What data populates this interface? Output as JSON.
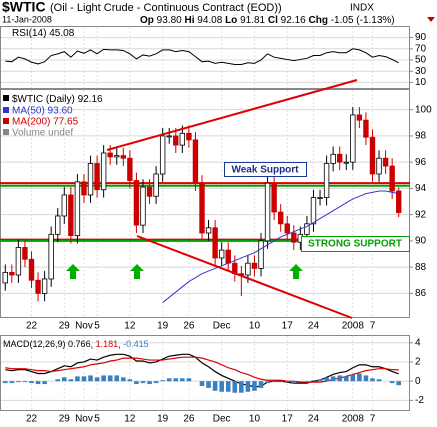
{
  "header": {
    "symbol": "$WTIC",
    "name": "(Oil - Light Crude - Continuous Contract (EOD))",
    "exchange": "INDX",
    "date": "11-Jan-2008",
    "quote": [
      {
        "label": "Op",
        "value": "93.80"
      },
      {
        "label": "Hi",
        "value": "94.08"
      },
      {
        "label": "Lo",
        "value": "91.81"
      },
      {
        "label": "Cl",
        "value": "92.16"
      },
      {
        "label": "Chg",
        "value": "-1.05 (-1.13%)"
      }
    ]
  },
  "chart_data": [
    {
      "type": "line",
      "label": "RSI(14)",
      "color": "#000000",
      "ylim": [
        0,
        100
      ],
      "yticks": [
        10,
        30,
        50,
        70,
        90
      ],
      "values": [
        48,
        47,
        55,
        52,
        46,
        43,
        47,
        58,
        61,
        65,
        55,
        66,
        62,
        68,
        61,
        69,
        68,
        68,
        67,
        61,
        52,
        59,
        57,
        61,
        68,
        68,
        65,
        67,
        65,
        56,
        47,
        48,
        44,
        46,
        44,
        42,
        42,
        45,
        44,
        50,
        61,
        55,
        53,
        51,
        49,
        51,
        53,
        58,
        58,
        63,
        65,
        63,
        63,
        70,
        68,
        63,
        55,
        58,
        56,
        51,
        45.08
      ]
    },
    {
      "type": "candlestick",
      "label": "$WTIC (Daily)",
      "up_color": "#000000",
      "down_color": "#cc0000",
      "ylim": [
        84.2,
        101.5
      ],
      "yticks": [
        86,
        88,
        90,
        92,
        94,
        96,
        98,
        100
      ],
      "categories": [
        null,
        null,
        null,
        null,
        "22",
        null,
        null,
        null,
        null,
        "29",
        null,
        null,
        "Nov",
        null,
        "5",
        null,
        null,
        null,
        null,
        "12",
        null,
        null,
        null,
        null,
        "19",
        null,
        null,
        null,
        "26",
        null,
        null,
        null,
        null,
        "Dec",
        null,
        null,
        null,
        null,
        "10",
        null,
        null,
        null,
        null,
        "17",
        null,
        null,
        null,
        "24",
        null,
        null,
        null,
        null,
        null,
        "2008",
        null,
        null,
        "7",
        null,
        null,
        null,
        null
      ],
      "open": [
        86.8,
        87.6,
        87.4,
        89.5,
        88.6,
        87.0,
        86.0,
        87.1,
        90.5,
        91.9,
        93.5,
        90.4,
        94.5,
        93.5,
        95.9,
        93.9,
        96.7,
        96.4,
        96.5,
        96.3,
        94.6,
        91.2,
        94.1,
        93.4,
        95.1,
        98.0,
        98.0,
        97.3,
        98.2,
        97.7,
        94.4,
        90.6,
        91.0,
        88.7,
        89.3,
        88.3,
        87.5,
        87.4,
        88.3,
        87.9,
        90.0,
        94.4,
        92.2,
        91.3,
        90.6,
        89.9,
        90.5,
        91.3,
        93.3,
        93.3,
        95.9,
        96.6,
        96.0,
        96.0,
        99.6,
        99.2,
        97.9,
        95.1,
        96.3,
        95.7,
        93.8
      ],
      "high": [
        88.2,
        88.2,
        90.1,
        90.1,
        89.2,
        87.6,
        87.7,
        91.1,
        92.5,
        94.1,
        94.1,
        95.1,
        95.1,
        96.5,
        96.5,
        97.3,
        97.3,
        97.1,
        97.1,
        96.9,
        95.2,
        94.7,
        94.7,
        95.7,
        98.6,
        98.6,
        98.6,
        98.8,
        98.8,
        98.3,
        95.0,
        91.6,
        91.6,
        89.9,
        89.9,
        88.9,
        88.1,
        88.9,
        88.9,
        90.6,
        95.0,
        95.0,
        92.8,
        91.9,
        91.2,
        91.1,
        91.9,
        93.9,
        93.9,
        96.5,
        97.2,
        97.2,
        96.6,
        100.2,
        100.2,
        99.8,
        98.5,
        96.9,
        96.9,
        96.3,
        94.08
      ],
      "low": [
        86.2,
        86.8,
        86.8,
        88.0,
        86.4,
        85.4,
        85.4,
        86.5,
        89.9,
        91.3,
        89.8,
        89.8,
        92.9,
        92.9,
        93.3,
        93.3,
        95.8,
        95.8,
        95.7,
        94.0,
        90.6,
        90.6,
        92.8,
        92.8,
        94.5,
        97.4,
        96.7,
        96.7,
        97.1,
        93.8,
        90.0,
        90.0,
        88.1,
        88.1,
        87.7,
        86.9,
        85.8,
        86.8,
        87.3,
        87.3,
        89.4,
        91.6,
        90.7,
        90.0,
        89.3,
        89.3,
        89.9,
        90.7,
        92.7,
        92.7,
        95.3,
        95.4,
        95.4,
        95.4,
        98.6,
        97.3,
        94.5,
        94.5,
        95.1,
        93.2,
        91.81
      ],
      "close": [
        87.6,
        87.4,
        89.5,
        88.6,
        87.0,
        86.0,
        87.1,
        90.5,
        91.9,
        93.5,
        90.4,
        94.5,
        93.5,
        95.9,
        93.9,
        96.7,
        96.4,
        96.5,
        96.3,
        94.6,
        91.2,
        94.1,
        93.4,
        95.1,
        98.0,
        98.0,
        97.3,
        98.2,
        97.7,
        94.4,
        90.6,
        91.0,
        88.7,
        89.3,
        88.3,
        87.5,
        87.4,
        88.3,
        87.9,
        90.0,
        94.4,
        92.2,
        91.3,
        90.6,
        89.9,
        90.5,
        91.3,
        93.3,
        93.3,
        95.9,
        96.6,
        96.0,
        96.0,
        99.6,
        99.2,
        97.9,
        95.1,
        96.3,
        95.7,
        93.8,
        92.16
      ],
      "series": [
        {
          "name": "MA(50) 93.60",
          "color": "#3333cc",
          "values": [
            null,
            null,
            null,
            null,
            null,
            null,
            null,
            null,
            null,
            null,
            null,
            null,
            null,
            null,
            null,
            null,
            null,
            null,
            null,
            null,
            null,
            null,
            null,
            null,
            85.3,
            85.7,
            86.1,
            86.5,
            86.9,
            87.2,
            87.5,
            87.7,
            87.9,
            88.1,
            88.3,
            88.5,
            88.7,
            88.9,
            89.1,
            89.4,
            89.7,
            90.0,
            90.3,
            90.5,
            90.7,
            90.9,
            91.1,
            91.4,
            91.7,
            92.0,
            92.3,
            92.6,
            92.9,
            93.2,
            93.4,
            93.6,
            93.7,
            93.8,
            93.8,
            93.7,
            93.6
          ]
        }
      ],
      "legend": [
        {
          "label": "MA(200) 77.65",
          "color": "#cc0000"
        },
        {
          "label": "Volume undef",
          "color": "#888888"
        }
      ],
      "hlines": [
        {
          "value": 94.4,
          "color": "#e00000"
        },
        {
          "value": 94.2,
          "color": "#00a000"
        },
        {
          "value": 90.1,
          "color": "#e00000"
        },
        {
          "value": 90.0,
          "color": "#00a000"
        }
      ],
      "annotations": [
        "Weak Support",
        "STRONG SUPPORT"
      ]
    },
    {
      "type": "line",
      "ylim": [
        -3,
        4.6
      ],
      "yticks": [
        -2,
        0,
        2,
        4
      ],
      "series": [
        {
          "name": "MACD(12,26,9)",
          "color": "#000000",
          "style": "line",
          "values": [
            1.2,
            1.1,
            1.2,
            1.2,
            1.0,
            0.8,
            0.8,
            1.0,
            1.3,
            1.6,
            1.5,
            1.9,
            2.0,
            2.3,
            2.2,
            2.5,
            2.7,
            2.8,
            2.8,
            2.6,
            2.1,
            2.1,
            1.9,
            2.0,
            2.3,
            2.6,
            2.7,
            2.8,
            2.8,
            2.5,
            1.9,
            1.5,
            1.0,
            0.6,
            0.3,
            0.0,
            -0.3,
            -0.4,
            -0.6,
            -0.5,
            -0.1,
            0.0,
            0.0,
            -0.1,
            -0.2,
            -0.2,
            -0.2,
            0.0,
            0.1,
            0.4,
            0.7,
            0.9,
            1.0,
            1.4,
            1.7,
            1.7,
            1.5,
            1.5,
            1.3,
            1.0,
            0.766
          ]
        },
        {
          "color": "#dd0000",
          "style": "line",
          "values": [
            1.4,
            1.3,
            1.3,
            1.3,
            1.2,
            1.1,
            1.1,
            1.0,
            1.1,
            1.2,
            1.3,
            1.4,
            1.5,
            1.7,
            1.8,
            1.9,
            2.1,
            2.2,
            2.4,
            2.4,
            2.4,
            2.3,
            2.2,
            2.2,
            2.2,
            2.3,
            2.4,
            2.5,
            2.5,
            2.5,
            2.4,
            2.2,
            2.0,
            1.7,
            1.4,
            1.2,
            0.9,
            0.7,
            0.4,
            0.2,
            0.1,
            0.1,
            0.1,
            0.0,
            0.0,
            -0.1,
            -0.1,
            -0.1,
            -0.1,
            0.0,
            0.2,
            0.3,
            0.5,
            0.7,
            0.9,
            1.1,
            1.2,
            1.3,
            1.3,
            1.2,
            1.181
          ]
        },
        {
          "color": "#3a7fc0",
          "style": "bar",
          "values": [
            -0.2,
            -0.2,
            -0.1,
            -0.1,
            -0.2,
            -0.3,
            -0.3,
            0.0,
            0.2,
            0.4,
            0.2,
            0.5,
            0.5,
            0.6,
            0.4,
            0.6,
            0.6,
            0.6,
            0.4,
            0.2,
            -0.3,
            -0.2,
            -0.3,
            -0.2,
            0.1,
            0.3,
            0.3,
            0.3,
            0.3,
            0.0,
            -0.5,
            -0.7,
            -1.0,
            -1.1,
            -1.1,
            -1.2,
            -1.2,
            -1.1,
            -1.0,
            -0.7,
            -0.2,
            -0.1,
            -0.1,
            -0.1,
            -0.2,
            -0.1,
            -0.1,
            0.1,
            0.2,
            0.4,
            0.5,
            0.6,
            0.5,
            0.7,
            0.8,
            0.6,
            0.3,
            0.2,
            0.0,
            -0.2,
            -0.415
          ]
        }
      ]
    }
  ]
}
